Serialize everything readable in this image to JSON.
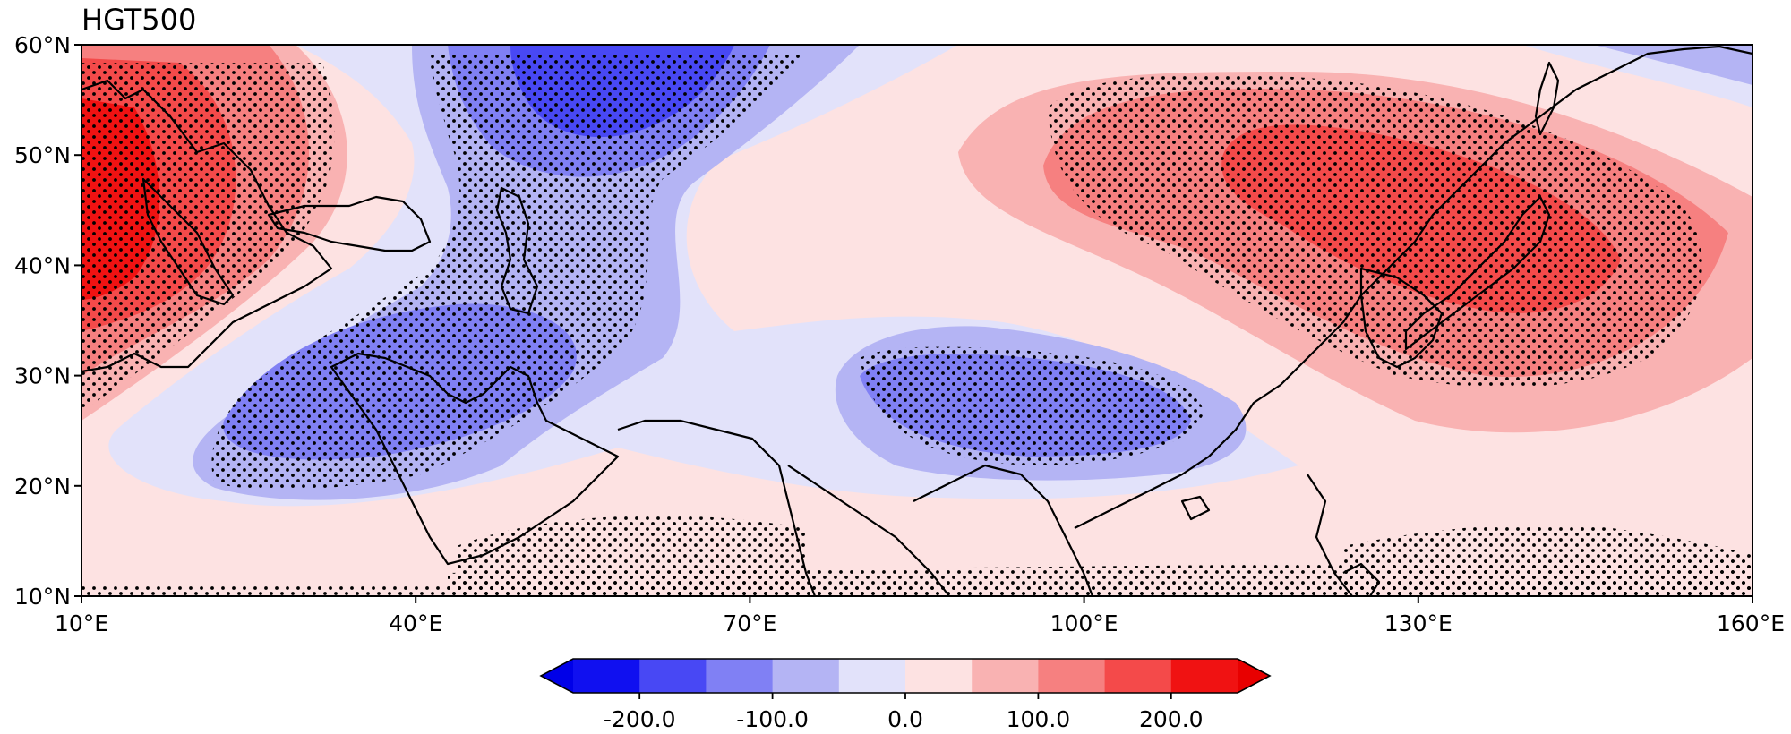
{
  "title": "HGT500",
  "chart_data": {
    "type": "contour-map",
    "variable": "HGT500",
    "x_ticks": [
      "10°E",
      "40°E",
      "70°E",
      "100°E",
      "130°E",
      "160°E"
    ],
    "y_ticks": [
      "10°N",
      "20°N",
      "30°N",
      "40°N",
      "50°N",
      "60°N"
    ],
    "lon_range": [
      10,
      160
    ],
    "lat_range": [
      10,
      60
    ],
    "colorbar": {
      "levels": [
        -250,
        -200,
        -150,
        -100,
        -50,
        0,
        50,
        100,
        150,
        200,
        250
      ],
      "tick_labels": [
        "-200.0",
        "-100.0",
        "0.0",
        "100.0",
        "200.0"
      ],
      "tick_values": [
        -200,
        -100,
        0,
        100,
        200
      ],
      "colors": [
        "#1010f0",
        "#4848f4",
        "#8080f4",
        "#b4b4f4",
        "#e2e2fa",
        "#fde2e2",
        "#f9b2b2",
        "#f68080",
        "#f44a4a",
        "#f01212"
      ],
      "under_color": "#0000e8",
      "over_color": "#e80000",
      "extend": "both"
    },
    "anomaly_centers": [
      {
        "sign": "positive",
        "lon": 13,
        "lat": 45,
        "peak": 240
      },
      {
        "sign": "negative",
        "lon": 55,
        "lat": 57,
        "peak": -220
      },
      {
        "sign": "negative",
        "lon": 43,
        "lat": 29,
        "peak": -150
      },
      {
        "sign": "negative",
        "lon": 100,
        "lat": 29,
        "peak": -110
      },
      {
        "sign": "positive",
        "lon": 138,
        "lat": 45,
        "peak": 170
      }
    ],
    "stippling": "significant regions marked with dots"
  }
}
